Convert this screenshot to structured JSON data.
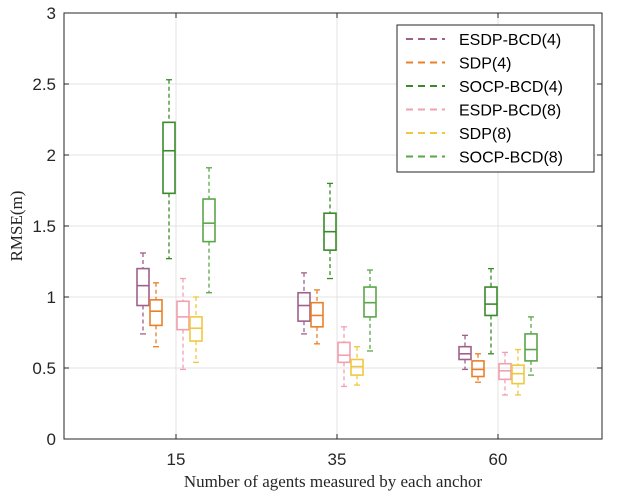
{
  "chart_data": {
    "type": "boxplot",
    "title": "",
    "xlabel": "Number of agents measured by each anchor",
    "ylabel": "RMSE(m)",
    "categories": [
      "15",
      "35",
      "60"
    ],
    "ylim": [
      0,
      3
    ],
    "yticks": [
      0,
      0.5,
      1,
      1.5,
      2,
      2.5,
      3
    ],
    "ytick_labels": [
      "0",
      "0.5",
      "1",
      "1.5",
      "2",
      "2.5",
      "3"
    ],
    "grid": true,
    "legend_position": "top-right",
    "series": [
      {
        "name": "ESDP-BCD(4)",
        "color": "#a0608c",
        "boxes": [
          {
            "whisker_low": 0.74,
            "q1": 0.94,
            "median": 1.08,
            "q3": 1.2,
            "whisker_high": 1.31
          },
          {
            "whisker_low": 0.74,
            "q1": 0.83,
            "median": 0.94,
            "q3": 1.03,
            "whisker_high": 1.17
          },
          {
            "whisker_low": 0.49,
            "q1": 0.56,
            "median": 0.6,
            "q3": 0.65,
            "whisker_high": 0.73
          }
        ]
      },
      {
        "name": "SDP(4)",
        "color": "#e8802a",
        "boxes": [
          {
            "whisker_low": 0.65,
            "q1": 0.8,
            "median": 0.9,
            "q3": 0.98,
            "whisker_high": 1.1
          },
          {
            "whisker_low": 0.67,
            "q1": 0.79,
            "median": 0.87,
            "q3": 0.96,
            "whisker_high": 1.05
          },
          {
            "whisker_low": 0.4,
            "q1": 0.44,
            "median": 0.49,
            "q3": 0.55,
            "whisker_high": 0.6
          }
        ]
      },
      {
        "name": "SOCP-BCD(4)",
        "color": "#3a8a2a",
        "boxes": [
          {
            "whisker_low": 1.27,
            "q1": 1.73,
            "median": 2.03,
            "q3": 2.23,
            "whisker_high": 2.53
          },
          {
            "whisker_low": 1.13,
            "q1": 1.33,
            "median": 1.46,
            "q3": 1.59,
            "whisker_high": 1.8
          },
          {
            "whisker_low": 0.6,
            "q1": 0.87,
            "median": 0.95,
            "q3": 1.07,
            "whisker_high": 1.2
          }
        ]
      },
      {
        "name": "ESDP-BCD(8)",
        "color": "#f2a0b0",
        "boxes": [
          {
            "whisker_low": 0.49,
            "q1": 0.77,
            "median": 0.86,
            "q3": 0.97,
            "whisker_high": 1.13
          },
          {
            "whisker_low": 0.37,
            "q1": 0.54,
            "median": 0.59,
            "q3": 0.68,
            "whisker_high": 0.79
          },
          {
            "whisker_low": 0.31,
            "q1": 0.42,
            "median": 0.48,
            "q3": 0.53,
            "whisker_high": 0.61
          }
        ]
      },
      {
        "name": "SDP(8)",
        "color": "#f0c840",
        "boxes": [
          {
            "whisker_low": 0.54,
            "q1": 0.69,
            "median": 0.78,
            "q3": 0.86,
            "whisker_high": 1.0
          },
          {
            "whisker_low": 0.38,
            "q1": 0.45,
            "median": 0.51,
            "q3": 0.56,
            "whisker_high": 0.65
          },
          {
            "whisker_low": 0.31,
            "q1": 0.39,
            "median": 0.46,
            "q3": 0.52,
            "whisker_high": 0.63
          }
        ]
      },
      {
        "name": "SOCP-BCD(8)",
        "color": "#5aa64a",
        "boxes": [
          {
            "whisker_low": 1.03,
            "q1": 1.39,
            "median": 1.52,
            "q3": 1.69,
            "whisker_high": 1.91
          },
          {
            "whisker_low": 0.62,
            "q1": 0.86,
            "median": 0.96,
            "q3": 1.07,
            "whisker_high": 1.19
          },
          {
            "whisker_low": 0.45,
            "q1": 0.55,
            "median": 0.63,
            "q3": 0.74,
            "whisker_high": 0.86
          }
        ]
      }
    ]
  }
}
